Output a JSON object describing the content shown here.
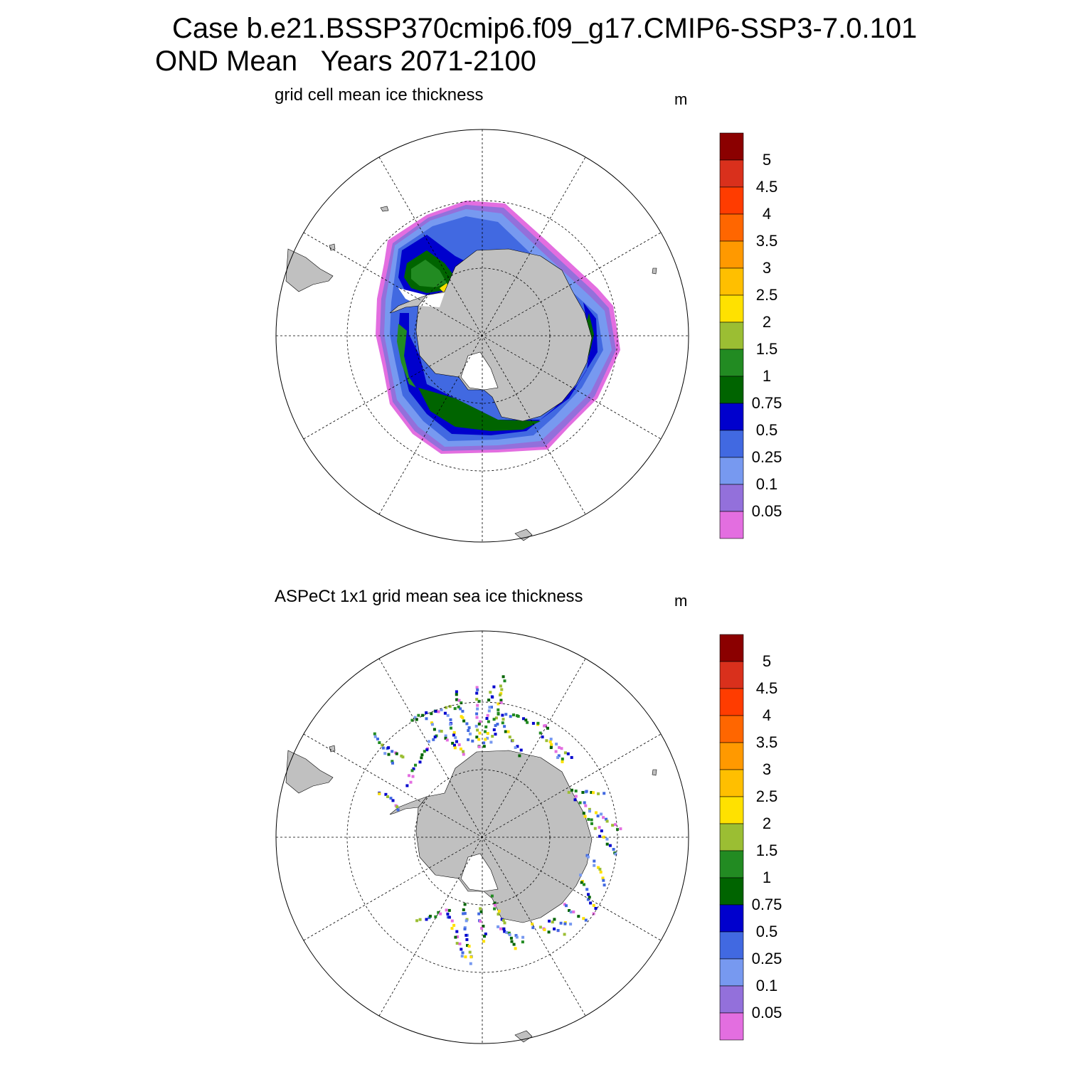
{
  "header": {
    "case_title": "Case b.e21.BSSP370cmip6.f09_g17.CMIP6-SSP3-7.0.101",
    "period_title": "OND Mean   Years 2071-2100"
  },
  "panels": [
    {
      "title": "grid cell mean ice thickness",
      "units": "m"
    },
    {
      "title": "ASPeCt 1x1 grid mean sea ice thickness",
      "units": "m"
    }
  ],
  "colorbar": {
    "labels": [
      "5",
      "4.5",
      "4",
      "3.5",
      "3",
      "2.5",
      "2",
      "1.5",
      "1",
      "0.75",
      "0.5",
      "0.25",
      "0.1",
      "0.05"
    ],
    "colors": [
      "#8b0000",
      "#d9301c",
      "#ff3c00",
      "#ff6600",
      "#ff9900",
      "#ffbf00",
      "#ffe100",
      "#9bbe33",
      "#228b22",
      "#006400",
      "#0000cd",
      "#4169e1",
      "#7799f0",
      "#9370db",
      "#e36ee0"
    ]
  },
  "land_color": "#c0c0c0"
}
